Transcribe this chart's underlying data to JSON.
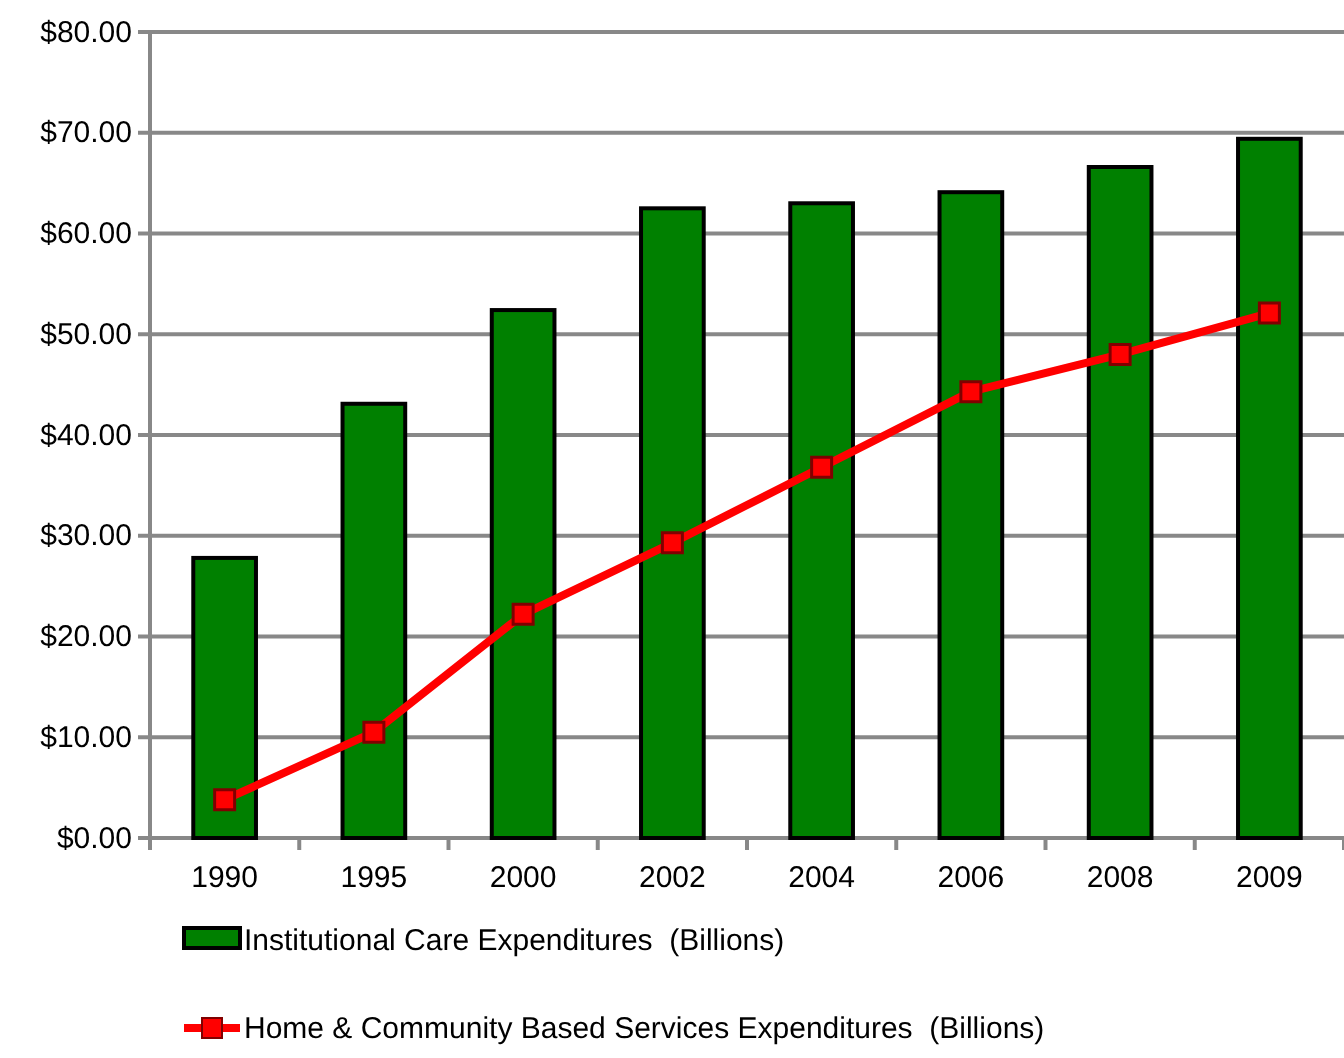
{
  "chart_data": {
    "type": "bar",
    "categories": [
      "1990",
      "1995",
      "2000",
      "2002",
      "2004",
      "2006",
      "2008",
      "2009"
    ],
    "series": [
      {
        "name": "Institutional Care Expenditures  (Billions)",
        "color": "#008000",
        "values": [
          27.8,
          43.1,
          52.4,
          62.5,
          63.0,
          64.1,
          66.6,
          69.4
        ]
      },
      {
        "name": "Home & Community Based Services Expenditures  (Billions)",
        "type": "line",
        "color": "#ff0000",
        "marker": "square",
        "values": [
          3.8,
          10.5,
          22.2,
          29.3,
          36.8,
          44.3,
          48.0,
          52.1
        ]
      }
    ],
    "ylim": [
      0,
      80
    ],
    "yticks": [
      {
        "value": 0,
        "label": "$0.00"
      },
      {
        "value": 10,
        "label": "$10.00"
      },
      {
        "value": 20,
        "label": "$20.00"
      },
      {
        "value": 30,
        "label": "$30.00"
      },
      {
        "value": 40,
        "label": "$40.00"
      },
      {
        "value": 50,
        "label": "$50.00"
      },
      {
        "value": 60,
        "label": "$60.00"
      },
      {
        "value": 70,
        "label": "$70.00"
      },
      {
        "value": 80,
        "label": "$80.00"
      }
    ],
    "grid": "y",
    "legend": "bottom"
  }
}
